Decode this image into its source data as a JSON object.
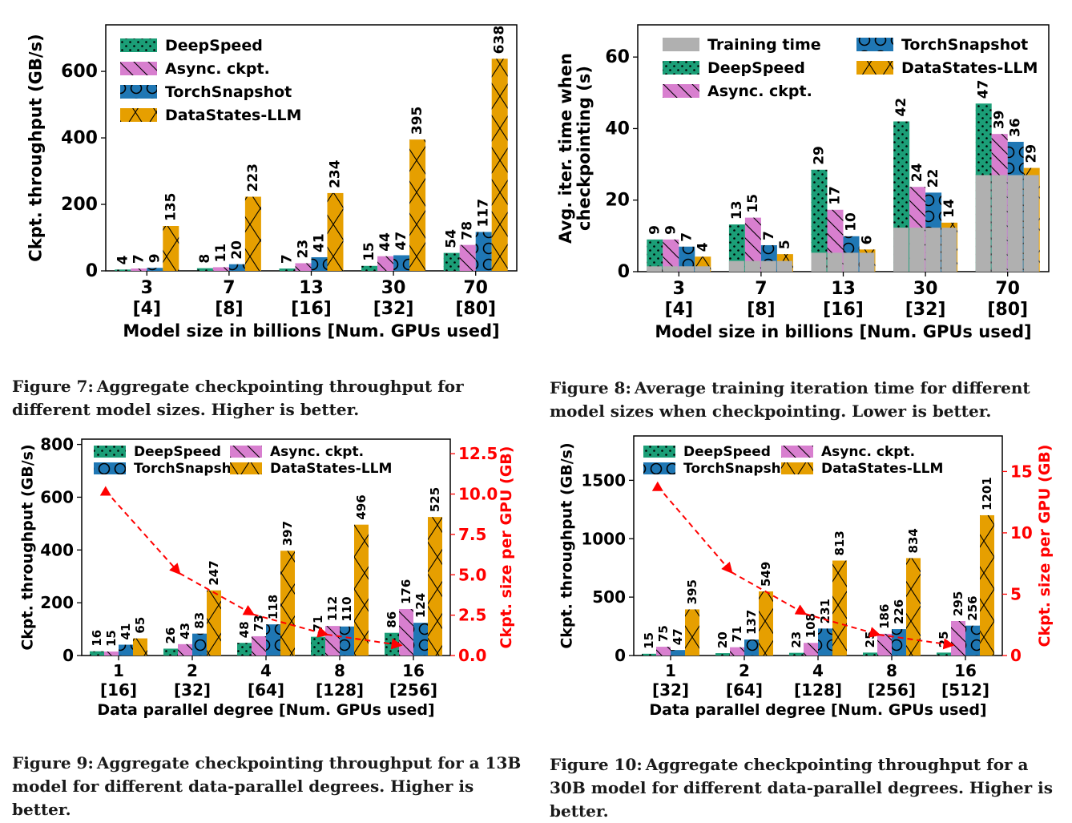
{
  "colors": {
    "deepspeed": "#1b9e77",
    "async": "#d87fcf",
    "torchsnapshot": "#1f77b4",
    "datastates": "#e69f00",
    "training": "#b0b0b0",
    "ckpt_size": "#ff0000"
  },
  "captions": {
    "fig7": {
      "label": "Figure 7:",
      "text": "Aggregate checkpointing throughput for different model sizes. Higher is better."
    },
    "fig8": {
      "label": "Figure 8:",
      "text": "Average training iteration time for different model sizes when checkpointing. Lower is better."
    },
    "fig9": {
      "label": "Figure 9:",
      "text": "Aggregate checkpointing throughput for a 13B model for different data-parallel degrees. Higher is better."
    },
    "fig10": {
      "label": "Figure 10:",
      "text": "Aggregate checkpointing throughput for a 30B model for different data-parallel degrees. Higher is better."
    }
  },
  "chart_data": [
    {
      "id": "fig7",
      "type": "bar",
      "categories": [
        "3\n[4]",
        "7\n[8]",
        "13\n[16]",
        "30\n[32]",
        "70\n[80]"
      ],
      "xlabel": "Model size in billions [Num. GPUs used]",
      "ylabel": "Ckpt. throughput (GB/s)",
      "ylim": [
        0,
        740
      ],
      "yticks": [
        0,
        200,
        400,
        600
      ],
      "legend_position": "top-left",
      "legend_columns": 1,
      "series": [
        {
          "name": "DeepSpeed",
          "key": "deepspeed",
          "values": [
            4,
            8,
            7,
            15,
            54
          ]
        },
        {
          "name": "Async. ckpt.",
          "key": "async",
          "values": [
            7,
            11,
            23,
            44,
            78
          ]
        },
        {
          "name": "TorchSnapshot",
          "key": "torchsnapshot",
          "values": [
            9,
            20,
            41,
            47,
            117
          ]
        },
        {
          "name": "DataStates-LLM",
          "key": "datastates",
          "values": [
            135,
            223,
            234,
            395,
            638
          ]
        }
      ]
    },
    {
      "id": "fig8",
      "type": "bar",
      "categories": [
        "3\n[4]",
        "7\n[8]",
        "13\n[16]",
        "30\n[32]",
        "70\n[80]"
      ],
      "xlabel": "Model size in billions [Num. GPUs used]",
      "ylabel": "Avg. iter. time when\ncheckpointing (s)",
      "ylim": [
        0,
        69
      ],
      "yticks": [
        0,
        20,
        40,
        60
      ],
      "legend_position": "top",
      "legend_columns": 2,
      "legend_order": [
        "training",
        "deepspeed",
        "async",
        "torchsnapshot",
        "datastates"
      ],
      "training_time": {
        "name": "Training time",
        "values": [
          1.5,
          3,
          5.3,
          12.3,
          27
        ]
      },
      "series": [
        {
          "name": "DeepSpeed",
          "key": "deepspeed",
          "values": [
            9,
            13,
            29,
            42,
            47
          ]
        },
        {
          "name": "Async. ckpt.",
          "key": "async",
          "values": [
            9,
            15,
            17,
            24,
            39
          ]
        },
        {
          "name": "TorchSnapshot",
          "key": "torchsnapshot",
          "values": [
            7,
            7,
            10,
            22,
            36
          ]
        },
        {
          "name": "DataStates-LLM",
          "key": "datastates",
          "values": [
            4,
            5,
            6,
            14,
            29
          ]
        }
      ],
      "heights": [
        [
          9,
          9,
          7,
          4.2
        ],
        [
          13.2,
          15.1,
          7.4,
          4.9
        ],
        [
          28.5,
          17.3,
          9.9,
          6.2
        ],
        [
          42,
          23.7,
          22.1,
          13.7
        ],
        [
          47,
          38.5,
          36.3,
          29
        ]
      ]
    },
    {
      "id": "fig9",
      "type": "bar",
      "categories": [
        "1\n[16]",
        "2\n[32]",
        "4\n[64]",
        "8\n[128]",
        "16\n[256]"
      ],
      "xlabel": "Data parallel degree [Num. GPUs used]",
      "ylabel": "Ckpt. throughput (GB/s)",
      "ylabel_right": "Ckpt. size per GPU (GB)",
      "ylim": [
        0,
        820
      ],
      "yticks": [
        0,
        200,
        400,
        600,
        800
      ],
      "ylim_right": [
        0,
        13.4
      ],
      "yticks_right": [
        0.0,
        2.5,
        5.0,
        7.5,
        10.0,
        12.5
      ],
      "legend_position": "top",
      "legend_columns": 2,
      "series": [
        {
          "name": "DeepSpeed",
          "key": "deepspeed",
          "values": [
            16,
            26,
            48,
            71,
            86
          ]
        },
        {
          "name": "Async. ckpt.",
          "key": "async",
          "values": [
            15,
            43,
            73,
            112,
            176
          ]
        },
        {
          "name": "TorchSnapshot",
          "key": "torchsnapshot",
          "values": [
            41,
            83,
            118,
            110,
            124
          ]
        },
        {
          "name": "DataStates-LLM",
          "key": "datastates",
          "values": [
            65,
            247,
            397,
            496,
            525
          ]
        }
      ],
      "line": {
        "values": [
          10.2,
          5.1,
          2.55,
          1.3,
          0.64
        ]
      }
    },
    {
      "id": "fig10",
      "type": "bar",
      "categories": [
        "1\n[32]",
        "2\n[64]",
        "4\n[128]",
        "8\n[256]",
        "16\n[512]"
      ],
      "xlabel": "Data parallel degree [Num. GPUs used]",
      "ylabel": "Ckpt. throughput (GB/s)",
      "ylabel_right": "Ckpt. size per GPU (GB)",
      "ylim": [
        0,
        1880
      ],
      "yticks": [
        0,
        500,
        1000,
        1500
      ],
      "ylim_right": [
        0,
        17.9
      ],
      "yticks_right": [
        0,
        5,
        10,
        15
      ],
      "legend_position": "top",
      "legend_columns": 2,
      "series": [
        {
          "name": "DeepSpeed",
          "key": "deepspeed",
          "values": [
            15,
            20,
            23,
            25,
            25
          ]
        },
        {
          "name": "Async. ckpt.",
          "key": "async",
          "values": [
            75,
            71,
            108,
            186,
            295
          ]
        },
        {
          "name": "TorchSnapshot",
          "key": "torchsnapshot",
          "values": [
            47,
            137,
            231,
            226,
            256
          ]
        },
        {
          "name": "DataStates-LLM",
          "key": "datastates",
          "values": [
            395,
            549,
            813,
            834,
            1201
          ]
        }
      ],
      "line": {
        "values": [
          13.8,
          6.8,
          3.4,
          1.7,
          0.85
        ]
      }
    }
  ]
}
